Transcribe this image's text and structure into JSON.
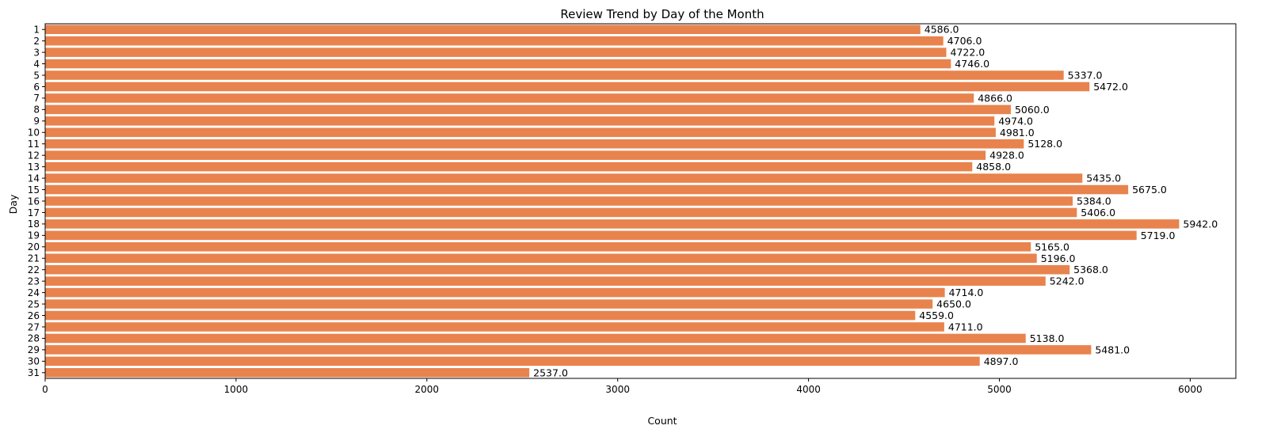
{
  "chart_data": {
    "type": "bar",
    "orientation": "horizontal",
    "title": "Review Trend by Day of the Month",
    "xlabel": "Count",
    "ylabel": "Day",
    "xlim": [
      0,
      6239.1
    ],
    "xticks": [
      0,
      1000,
      2000,
      3000,
      4000,
      5000,
      6000
    ],
    "xtick_labels": [
      "0",
      "1000",
      "2000",
      "3000",
      "4000",
      "5000",
      "6000"
    ],
    "grid": false,
    "bar_color": "#e8834d",
    "categories": [
      "1",
      "2",
      "3",
      "4",
      "5",
      "6",
      "7",
      "8",
      "9",
      "10",
      "11",
      "12",
      "13",
      "14",
      "15",
      "16",
      "17",
      "18",
      "19",
      "20",
      "21",
      "22",
      "23",
      "24",
      "25",
      "26",
      "27",
      "28",
      "29",
      "30",
      "31"
    ],
    "values": [
      4586,
      4706,
      4722,
      4746,
      5337,
      5472,
      4866,
      5060,
      4974,
      4981,
      5128,
      4928,
      4858,
      5435,
      5675,
      5384,
      5406,
      5942,
      5719,
      5165,
      5196,
      5368,
      5242,
      4714,
      4650,
      4559,
      4711,
      5138,
      5481,
      4897,
      2537
    ],
    "data_labels": [
      "4586.0",
      "4706.0",
      "4722.0",
      "4746.0",
      "5337.0",
      "5472.0",
      "4866.0",
      "5060.0",
      "4974.0",
      "4981.0",
      "5128.0",
      "4928.0",
      "4858.0",
      "5435.0",
      "5675.0",
      "5384.0",
      "5406.0",
      "5942.0",
      "5719.0",
      "5165.0",
      "5196.0",
      "5368.0",
      "5242.0",
      "4714.0",
      "4650.0",
      "4559.0",
      "4711.0",
      "5138.0",
      "5481.0",
      "4897.0",
      "2537.0"
    ]
  }
}
